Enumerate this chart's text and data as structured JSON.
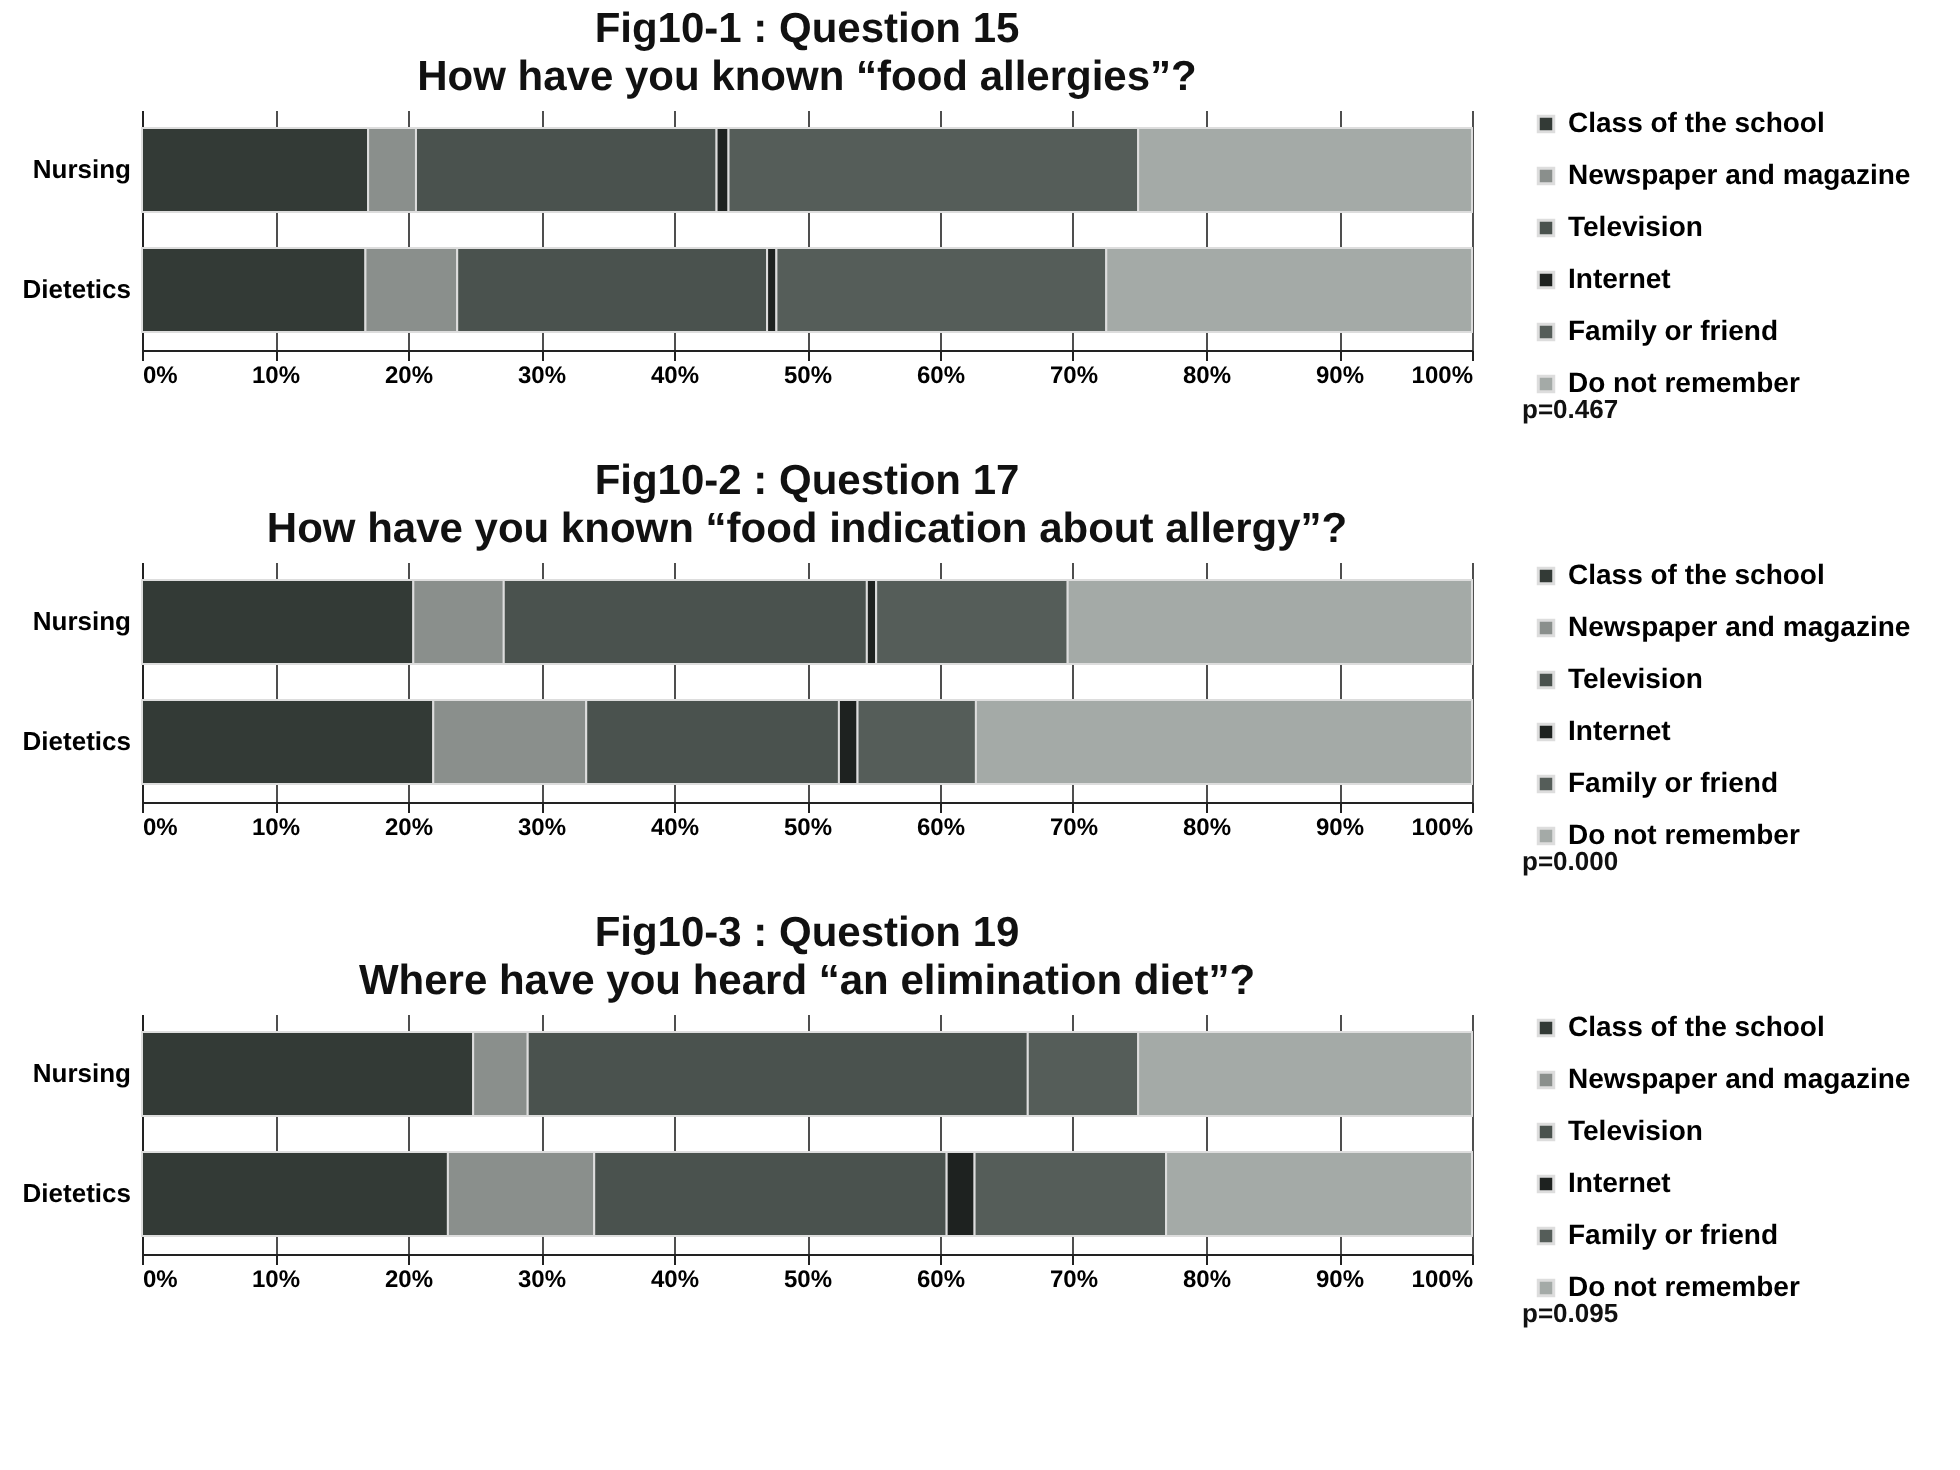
{
  "chart_data": [
    {
      "type": "bar",
      "orientation": "horizontal",
      "stacked": true,
      "title": "Fig10-1 : Question 15",
      "subtitle": "How have you known “food allergies”?",
      "categories": [
        "Nursing",
        "Dietetics"
      ],
      "series": [
        {
          "name": "Class of the school",
          "color": "#333a36",
          "values": [
            17.0,
            16.8
          ]
        },
        {
          "name": "Newspaper and magazine",
          "color": "#8a8f8c",
          "values": [
            3.6,
            6.9
          ]
        },
        {
          "name": "Television",
          "color": "#4a524e",
          "values": [
            22.6,
            23.3
          ]
        },
        {
          "name": "Internet",
          "color": "#1e2220",
          "values": [
            0.9,
            0.7
          ]
        },
        {
          "name": "Family or friend",
          "color": "#555d59",
          "values": [
            30.8,
            24.8
          ]
        },
        {
          "name": "Do not remember",
          "color": "#a4aaa7",
          "values": [
            25.1,
            27.5
          ]
        }
      ],
      "xlim": [
        0,
        100
      ],
      "xticks": [
        {
          "value": 0,
          "label": "0%"
        },
        {
          "value": 10,
          "label": "10%"
        },
        {
          "value": 20,
          "label": "20%"
        },
        {
          "value": 30,
          "label": "30%"
        },
        {
          "value": 40,
          "label": "40%"
        },
        {
          "value": 50,
          "label": "50%"
        },
        {
          "value": 60,
          "label": "60%"
        },
        {
          "value": 70,
          "label": "70%"
        },
        {
          "value": 80,
          "label": "80%"
        },
        {
          "value": 90,
          "label": "90%"
        },
        {
          "value": 100,
          "label": "100%"
        }
      ],
      "grid": "x",
      "legend": "right",
      "annotations": [
        "p=0.467"
      ]
    },
    {
      "type": "bar",
      "orientation": "horizontal",
      "stacked": true,
      "title": "Fig10-2 : Question 17",
      "subtitle": "How have you known “food indication about allergy”?",
      "categories": [
        "Nursing",
        "Dietetics"
      ],
      "series": [
        {
          "name": "Class of the school",
          "color": "#333a36",
          "values": [
            20.4,
            21.9
          ]
        },
        {
          "name": "Newspaper and magazine",
          "color": "#8a8f8c",
          "values": [
            6.8,
            11.5
          ]
        },
        {
          "name": "Television",
          "color": "#4a524e",
          "values": [
            27.3,
            19.0
          ]
        },
        {
          "name": "Internet",
          "color": "#1e2220",
          "values": [
            0.7,
            1.4
          ]
        },
        {
          "name": "Family or friend",
          "color": "#555d59",
          "values": [
            14.4,
            8.9
          ]
        },
        {
          "name": "Do not remember",
          "color": "#a4aaa7",
          "values": [
            30.4,
            37.3
          ]
        }
      ],
      "xlim": [
        0,
        100
      ],
      "xticks": [
        {
          "value": 0,
          "label": "0%"
        },
        {
          "value": 10,
          "label": "10%"
        },
        {
          "value": 20,
          "label": "20%"
        },
        {
          "value": 30,
          "label": "30%"
        },
        {
          "value": 40,
          "label": "40%"
        },
        {
          "value": 50,
          "label": "50%"
        },
        {
          "value": 60,
          "label": "60%"
        },
        {
          "value": 70,
          "label": "70%"
        },
        {
          "value": 80,
          "label": "80%"
        },
        {
          "value": 90,
          "label": "90%"
        },
        {
          "value": 100,
          "label": "100%"
        }
      ],
      "grid": "x",
      "legend": "right",
      "annotations": [
        "p=0.000"
      ]
    },
    {
      "type": "bar",
      "orientation": "horizontal",
      "stacked": true,
      "title": "Fig10-3 : Question 19",
      "subtitle": "Where have you heard “an elimination diet”?",
      "categories": [
        "Nursing",
        "Dietetics"
      ],
      "series": [
        {
          "name": "Class of the school",
          "color": "#333a36",
          "values": [
            24.9,
            23.0
          ]
        },
        {
          "name": "Newspaper and magazine",
          "color": "#8a8f8c",
          "values": [
            4.1,
            11.0
          ]
        },
        {
          "name": "Television",
          "color": "#4a524e",
          "values": [
            37.6,
            26.5
          ]
        },
        {
          "name": "Internet",
          "color": "#1e2220",
          "values": [
            null,
            2.1
          ]
        },
        {
          "name": "Family or friend",
          "color": "#555d59",
          "values": [
            8.3,
            14.4
          ]
        },
        {
          "name": "Do not remember",
          "color": "#a4aaa7",
          "values": [
            25.1,
            23.0
          ]
        }
      ],
      "xlim": [
        0,
        100
      ],
      "xticks": [
        {
          "value": 0,
          "label": "0%"
        },
        {
          "value": 10,
          "label": "10%"
        },
        {
          "value": 20,
          "label": "20%"
        },
        {
          "value": 30,
          "label": "30%"
        },
        {
          "value": 40,
          "label": "40%"
        },
        {
          "value": 50,
          "label": "50%"
        },
        {
          "value": 60,
          "label": "60%"
        },
        {
          "value": 70,
          "label": "70%"
        },
        {
          "value": 80,
          "label": "80%"
        },
        {
          "value": 90,
          "label": "90%"
        },
        {
          "value": 100,
          "label": "100%"
        }
      ],
      "grid": "x",
      "legend": "right",
      "annotations": [
        "p=0.095"
      ]
    }
  ]
}
